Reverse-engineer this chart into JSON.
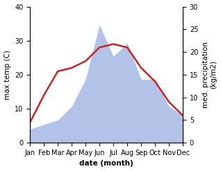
{
  "months": [
    "Jan",
    "Feb",
    "Mar",
    "Apr",
    "May",
    "Jun",
    "Jul",
    "Aug",
    "Sep",
    "Oct",
    "Nov",
    "Dec"
  ],
  "temperature": [
    6,
    14,
    21,
    22,
    24,
    28,
    29,
    28,
    22,
    18,
    12,
    8
  ],
  "precipitation": [
    3,
    4,
    5,
    8,
    14,
    26,
    19,
    22,
    14,
    14,
    8,
    6
  ],
  "temp_color": "#cc2222",
  "precip_color": "#b3c3e8",
  "temp_ylim": [
    0,
    40
  ],
  "precip_ylim": [
    0,
    30
  ],
  "ylabel_left": "max temp (C)",
  "ylabel_right": "med. precipitation\n(kg/m2)",
  "xlabel": "date (month)",
  "label_fontsize": 7.5,
  "tick_fontsize": 7,
  "line_width": 1.8,
  "bg_color": "#ffffff"
}
